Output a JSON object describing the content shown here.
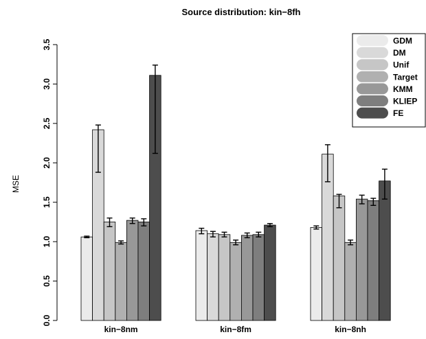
{
  "chart_data": {
    "type": "bar",
    "title": "Source distribution: kin−8fh",
    "xlabel": "",
    "ylabel": "MSE",
    "ylim": [
      0,
      3.5
    ],
    "yticks": [
      "0.0",
      "0.5",
      "1.0",
      "1.5",
      "2.0",
      "2.5",
      "3.0",
      "3.5"
    ],
    "categories": [
      "kin−8nm",
      "kin−8fm",
      "kin−8nh"
    ],
    "legend_position": "top-right",
    "grid": false,
    "series": [
      {
        "name": "GDM",
        "color": "#ebebeb",
        "values": [
          1.06,
          1.14,
          1.18
        ],
        "err_low": [
          1.05,
          1.1,
          1.16
        ],
        "err_high": [
          1.07,
          1.17,
          1.2
        ]
      },
      {
        "name": "DM",
        "color": "#d9d9d9",
        "values": [
          2.42,
          1.1,
          2.11
        ],
        "err_low": [
          1.88,
          1.06,
          1.76
        ],
        "err_high": [
          2.48,
          1.13,
          2.23
        ]
      },
      {
        "name": "Unif",
        "color": "#c6c6c6",
        "values": [
          1.25,
          1.09,
          1.58
        ],
        "err_low": [
          1.19,
          1.06,
          1.43
        ],
        "err_high": [
          1.3,
          1.12,
          1.6
        ]
      },
      {
        "name": "Target",
        "color": "#b0b0b0",
        "values": [
          0.99,
          0.99,
          0.99
        ],
        "err_low": [
          0.97,
          0.96,
          0.96
        ],
        "err_high": [
          1.01,
          1.02,
          1.02
        ]
      },
      {
        "name": "KMM",
        "color": "#989898",
        "values": [
          1.27,
          1.08,
          1.54
        ],
        "err_low": [
          1.23,
          1.05,
          1.48
        ],
        "err_high": [
          1.3,
          1.11,
          1.59
        ]
      },
      {
        "name": "KLIEP",
        "color": "#7e7e7e",
        "values": [
          1.25,
          1.09,
          1.52
        ],
        "err_low": [
          1.2,
          1.06,
          1.46
        ],
        "err_high": [
          1.29,
          1.12,
          1.55
        ]
      },
      {
        "name": "FE",
        "color": "#4d4d4d",
        "values": [
          3.11,
          1.21,
          1.77
        ],
        "err_low": [
          2.12,
          1.19,
          1.54
        ],
        "err_high": [
          3.24,
          1.23,
          1.92
        ]
      }
    ]
  }
}
